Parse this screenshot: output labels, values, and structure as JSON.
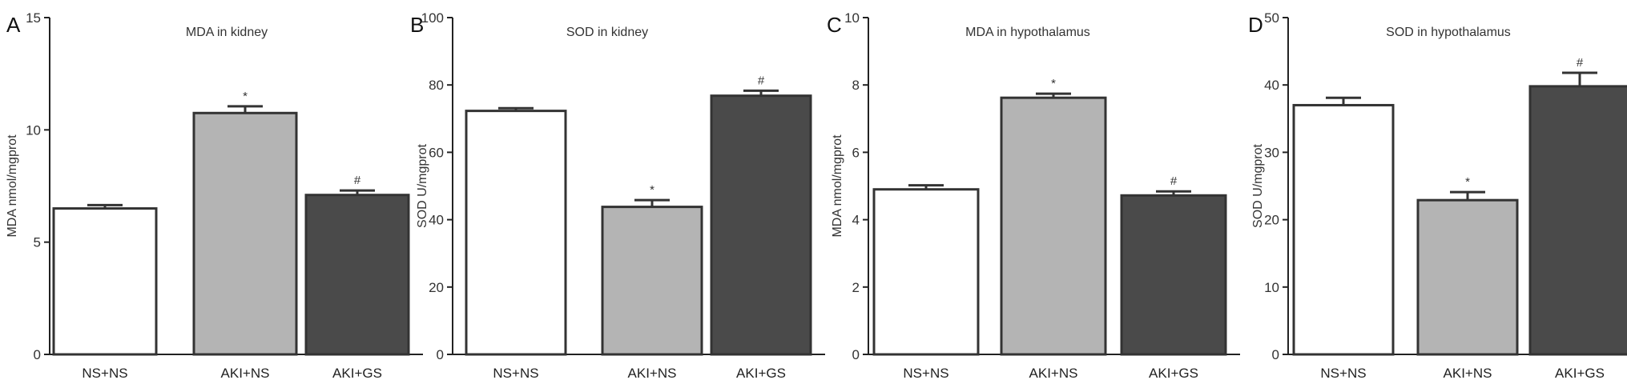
{
  "figure": {
    "colors": {
      "axis": "#222222",
      "bar_outline": "#333333"
    },
    "panels": [
      {
        "letter": "A",
        "chart_data": {
          "type": "bar",
          "title": "MDA in kidney",
          "ylabel": "MDA nmol/mgprot",
          "xlabel": "",
          "categories": [
            "NS+NS",
            "AKI+NS",
            "AKI+GS"
          ],
          "values": [
            6.5,
            10.75,
            7.1
          ],
          "errors": [
            0.15,
            0.3,
            0.2
          ],
          "significance": [
            "",
            "*",
            "#"
          ],
          "bar_colors": [
            "#ffffff",
            "#b4b4b4",
            "#4a4a4a"
          ],
          "ylim": [
            0,
            15
          ],
          "yticks": [
            0,
            5,
            10,
            15
          ],
          "ytick_labels": [
            "0",
            "5",
            "10",
            "15"
          ],
          "grid": false
        }
      },
      {
        "letter": "B",
        "chart_data": {
          "type": "bar",
          "title": "SOD in kidney",
          "ylabel": "SOD U/mgprot",
          "xlabel": "",
          "categories": [
            "NS+NS",
            "AKI+NS",
            "AKI+GS"
          ],
          "values": [
            72.3,
            43.8,
            76.8
          ],
          "errors": [
            0.8,
            2.0,
            1.5
          ],
          "significance": [
            "",
            "*",
            "#"
          ],
          "bar_colors": [
            "#ffffff",
            "#b4b4b4",
            "#4a4a4a"
          ],
          "ylim": [
            0,
            100
          ],
          "yticks": [
            0,
            20,
            40,
            60,
            80,
            100
          ],
          "ytick_labels": [
            "0",
            "20",
            "40",
            "60",
            "80",
            "100"
          ],
          "grid": false
        }
      },
      {
        "letter": "C",
        "chart_data": {
          "type": "bar",
          "title": "MDA in hypothalamus",
          "ylabel": "MDA nmol/mgprot",
          "xlabel": "",
          "categories": [
            "NS+NS",
            "AKI+NS",
            "AKI+GS"
          ],
          "values": [
            4.9,
            7.62,
            4.72
          ],
          "errors": [
            0.12,
            0.12,
            0.12
          ],
          "significance": [
            "",
            "*",
            "#"
          ],
          "bar_colors": [
            "#ffffff",
            "#b4b4b4",
            "#4a4a4a"
          ],
          "ylim": [
            0,
            10
          ],
          "yticks": [
            0,
            2,
            4,
            6,
            8,
            10
          ],
          "ytick_labels": [
            "0",
            "2",
            "4",
            "6",
            "8",
            "10"
          ],
          "grid": false
        }
      },
      {
        "letter": "D",
        "chart_data": {
          "type": "bar",
          "title": "SOD in hypothalamus",
          "ylabel": "SOD U/mgprot",
          "xlabel": "",
          "categories": [
            "NS+NS",
            "AKI+NS",
            "AKI+GS"
          ],
          "values": [
            37.0,
            22.9,
            39.8
          ],
          "errors": [
            1.1,
            1.2,
            2.0
          ],
          "significance": [
            "",
            "*",
            "#"
          ],
          "bar_colors": [
            "#ffffff",
            "#b4b4b4",
            "#4a4a4a"
          ],
          "ylim": [
            0,
            50
          ],
          "yticks": [
            0,
            10,
            20,
            30,
            40,
            50
          ],
          "ytick_labels": [
            "0",
            "10",
            "20",
            "30",
            "40",
            "50"
          ],
          "grid": false
        }
      }
    ]
  }
}
